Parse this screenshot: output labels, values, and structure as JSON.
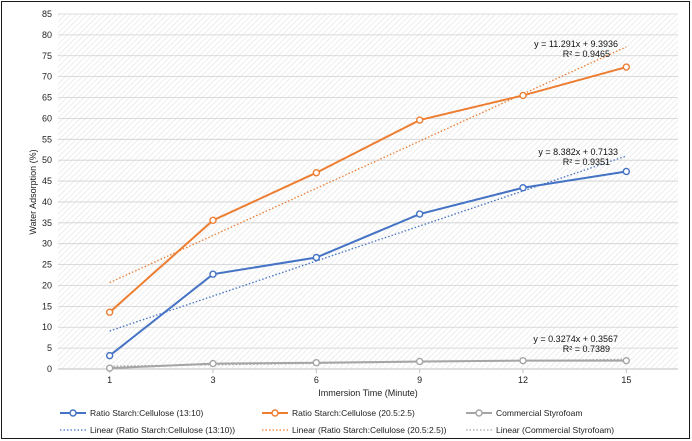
{
  "chart_data": {
    "type": "line",
    "title": "",
    "xlabel": "Immersion Time (Minute)",
    "ylabel": "Water Adsorption (%)",
    "categories": [
      "1",
      "3",
      "6",
      "9",
      "12",
      "15"
    ],
    "ylim": [
      0,
      85
    ],
    "yticks": [
      0,
      5,
      10,
      15,
      20,
      25,
      30,
      35,
      40,
      45,
      50,
      55,
      60,
      65,
      70,
      75,
      80,
      85
    ],
    "grid": true,
    "legend_position": "bottom",
    "series": [
      {
        "name": "Ratio Starch:Cellulose (13:10)",
        "color": "#4472c4",
        "values": [
          3.2,
          22.7,
          26.7,
          37.1,
          43.4,
          47.3
        ],
        "trendline": {
          "name": "Linear (Ratio Starch:Cellulose (13:10))",
          "slope": 8.382,
          "intercept": 0.7133,
          "equation": "y = 8.382x + 0.7133",
          "r2": "R² = 0.9351"
        }
      },
      {
        "name": "Ratio Starch:Cellulose (20.5:2.5)",
        "color": "#ed7d31",
        "values": [
          13.6,
          35.6,
          47.0,
          59.6,
          65.5,
          72.3
        ],
        "trendline": {
          "name": "Linear (Ratio Starch:Cellulose (20.5:2.5))",
          "slope": 11.291,
          "intercept": 9.3936,
          "equation": "y = 11.291x + 9.3936",
          "r2": "R² = 0.9465"
        }
      },
      {
        "name": "Commercial Styrofoam",
        "color": "#a5a5a5",
        "values": [
          0.2,
          1.3,
          1.5,
          1.8,
          2.0,
          2.0
        ],
        "trendline": {
          "name": "Linear (Commercial Styrofoam)",
          "slope": 0.3274,
          "intercept": 0.3567,
          "equation": "y = 0.3274x + 0.3567",
          "r2": "R² = 0.7389"
        }
      }
    ]
  }
}
